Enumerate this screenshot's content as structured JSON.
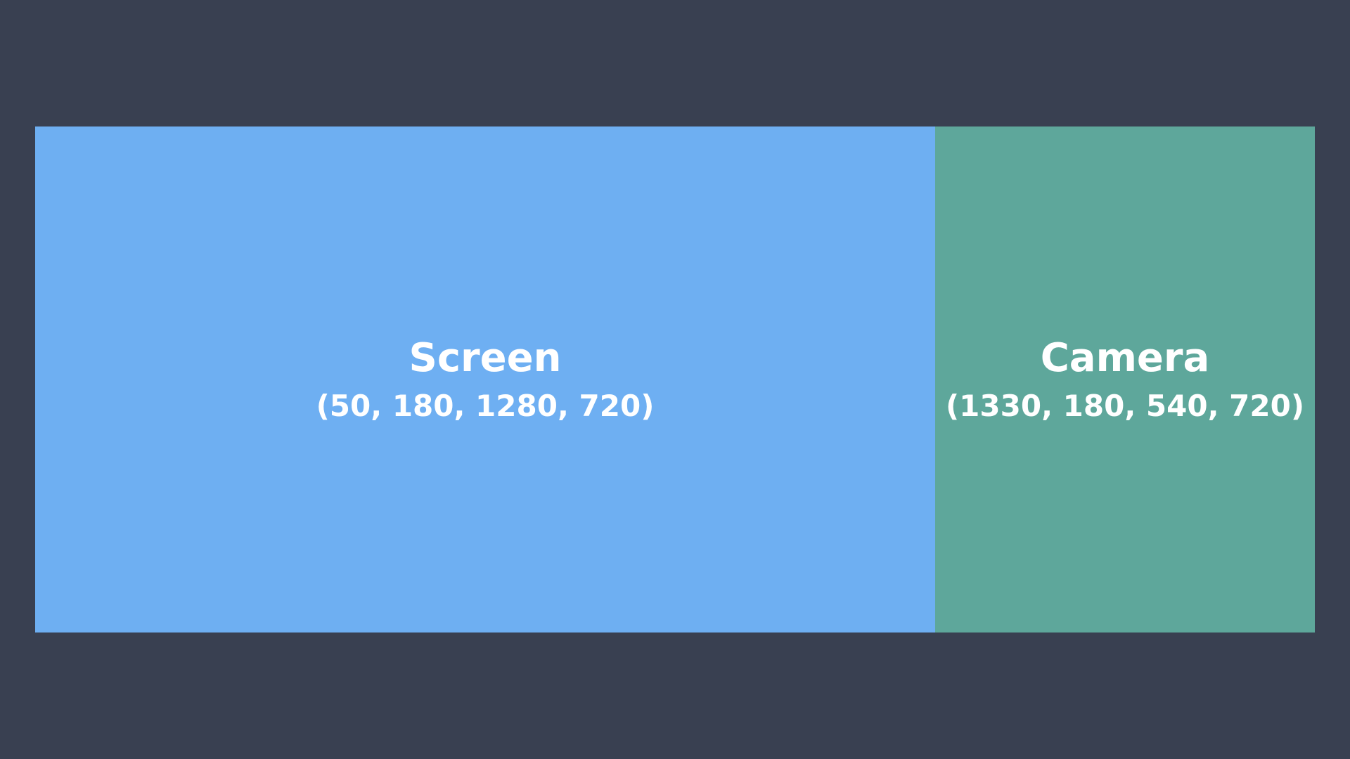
{
  "colors": {
    "background": "#394051",
    "screen": "#6EAFF2",
    "camera": "#5EA79B",
    "text": "#FFFFFF"
  },
  "regions": [
    {
      "name": "Screen",
      "coords": "(50, 180, 1280, 720)"
    },
    {
      "name": "Camera",
      "coords": "(1330, 180, 540, 720)"
    }
  ]
}
